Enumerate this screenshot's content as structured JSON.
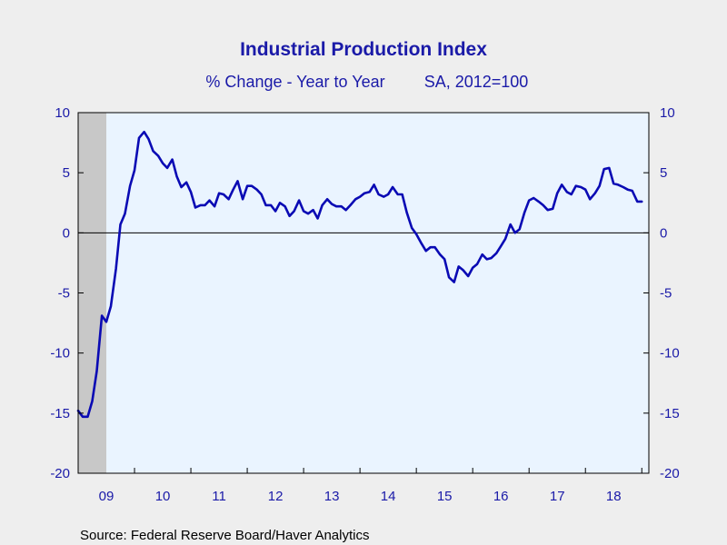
{
  "chart_data": {
    "type": "line",
    "title": "Industrial Production Index",
    "subtitle_left": "% Change - Year to Year",
    "subtitle_right": "SA, 2012=100",
    "source": "Source:  Federal Reserve Board/Haver Analytics",
    "ylim": [
      -20,
      10
    ],
    "yticks": [
      "10",
      "5",
      "0",
      "-5",
      "-10",
      "-15",
      "-20"
    ],
    "ytick_values": [
      10,
      5,
      0,
      -5,
      -10,
      -15,
      -20
    ],
    "xlim": [
      2009.0,
      2019.125
    ],
    "xticks": [
      "09",
      "10",
      "11",
      "12",
      "13",
      "14",
      "15",
      "16",
      "17",
      "18"
    ],
    "xtick_years": [
      2009,
      2010,
      2011,
      2012,
      2013,
      2014,
      2015,
      2016,
      2017,
      2018
    ],
    "recession_band": [
      2009.0,
      2009.5
    ],
    "zero_line": true,
    "colors": {
      "line": "#0a0ab4",
      "text": "#1a1aa8",
      "plot_bg": "#eaf4ff",
      "page_bg": "#eeeeee",
      "recession": "#c8c8c8"
    },
    "series": [
      {
        "x": [
          2009.0,
          2009.08,
          2009.17,
          2009.25,
          2009.33,
          2009.42,
          2009.5,
          2009.58,
          2009.67,
          2009.75,
          2009.83,
          2009.92,
          2010.0,
          2010.08,
          2010.17,
          2010.25,
          2010.33,
          2010.42,
          2010.5,
          2010.58,
          2010.67,
          2010.75,
          2010.83,
          2010.92,
          2011.0,
          2011.08,
          2011.17,
          2011.25,
          2011.33,
          2011.42,
          2011.5,
          2011.58,
          2011.67,
          2011.75,
          2011.83,
          2011.92,
          2012.0,
          2012.08,
          2012.17,
          2012.25,
          2012.33,
          2012.42,
          2012.5,
          2012.58,
          2012.67,
          2012.75,
          2012.83,
          2012.92,
          2013.0,
          2013.08,
          2013.17,
          2013.25,
          2013.33,
          2013.42,
          2013.5,
          2013.58,
          2013.67,
          2013.75,
          2013.83,
          2013.92,
          2014.0,
          2014.08,
          2014.17,
          2014.25,
          2014.33,
          2014.42,
          2014.5,
          2014.58,
          2014.67,
          2014.75,
          2014.83,
          2014.92,
          2015.0,
          2015.08,
          2015.17,
          2015.25,
          2015.33,
          2015.42,
          2015.5,
          2015.58,
          2015.67,
          2015.75,
          2015.83,
          2015.92,
          2016.0,
          2016.08,
          2016.17,
          2016.25,
          2016.33,
          2016.42,
          2016.5,
          2016.58,
          2016.67,
          2016.75,
          2016.83,
          2016.92,
          2017.0,
          2017.08,
          2017.17,
          2017.25,
          2017.33,
          2017.42,
          2017.5,
          2017.58,
          2017.67,
          2017.75,
          2017.83,
          2017.92,
          2018.0,
          2018.08,
          2018.17,
          2018.25,
          2018.33,
          2018.42,
          2018.5,
          2018.58,
          2018.67,
          2018.75,
          2018.83,
          2018.92,
          2019.0
        ],
        "values": [
          -14.8,
          -15.3,
          -15.3,
          -14.0,
          -11.5,
          -6.9,
          -7.4,
          -6.1,
          -3.0,
          0.7,
          1.6,
          3.9,
          5.2,
          7.9,
          8.4,
          7.8,
          6.8,
          6.4,
          5.8,
          5.4,
          6.1,
          4.7,
          3.8,
          4.2,
          3.4,
          2.1,
          2.3,
          2.3,
          2.7,
          2.2,
          3.3,
          3.2,
          2.8,
          3.6,
          4.3,
          2.8,
          3.9,
          3.9,
          3.6,
          3.2,
          2.3,
          2.3,
          1.8,
          2.5,
          2.2,
          1.4,
          1.8,
          2.7,
          1.8,
          1.6,
          1.9,
          1.2,
          2.3,
          2.8,
          2.4,
          2.2,
          2.2,
          1.9,
          2.3,
          2.8,
          3.0,
          3.3,
          3.4,
          4.0,
          3.2,
          3.0,
          3.2,
          3.8,
          3.2,
          3.2,
          1.7,
          0.4,
          -0.1,
          -0.8,
          -1.5,
          -1.2,
          -1.2,
          -1.8,
          -2.2,
          -3.7,
          -4.1,
          -2.8,
          -3.1,
          -3.6,
          -2.9,
          -2.6,
          -1.8,
          -2.2,
          -2.1,
          -1.7,
          -1.1,
          -0.5,
          0.7,
          0.0,
          0.3,
          1.7,
          2.7,
          2.9,
          2.6,
          2.3,
          1.9,
          2.0,
          3.3,
          4.0,
          3.4,
          3.2,
          3.9,
          3.8,
          3.6,
          2.8,
          3.3,
          3.9,
          5.3,
          5.4,
          4.1,
          4.0,
          3.8,
          3.6,
          3.5,
          2.6,
          2.6
        ]
      }
    ]
  }
}
